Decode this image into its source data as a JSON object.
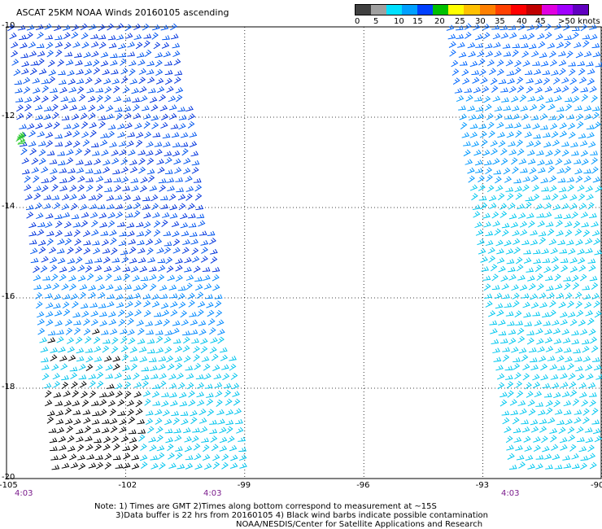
{
  "title": "ASCAT 25KM NOAA Winds 20160105 ascending",
  "colorbar": {
    "labels": [
      "0",
      "5",
      "10",
      "15",
      "20",
      "25",
      "30",
      "35",
      "40",
      "45",
      ">50 knots"
    ],
    "colors": [
      "#404040",
      "#a0a0a0",
      "#00e0ff",
      "#00a0ff",
      "#0040ff",
      "#00c000",
      "#ffff00",
      "#ffc000",
      "#ff8000",
      "#ff4000",
      "#ff0000",
      "#c00000",
      "#e000e0",
      "#a000ff",
      "#6000c0"
    ]
  },
  "axes": {
    "lat_labels": [
      "-10",
      "-12",
      "-14",
      "-16",
      "-18",
      "-20"
    ],
    "lon_labels": [
      "-105",
      "-102",
      "-99",
      "-96",
      "-93",
      "-90"
    ],
    "lat_range": [
      -20,
      -10
    ],
    "lon_range": [
      -105,
      -90
    ]
  },
  "time_labels": [
    "4:03",
    "4:03",
    "4:03"
  ],
  "notes": [
    "Note: 1) Times are GMT 2)Times along bottom correspond to measurement at ~15S",
    "3)Data buffer is 22 hrs from 20160105 4) Black wind barbs indicate possible contamination",
    "NOAA/NESDIS/Center for Satellite Applications and Research"
  ]
}
